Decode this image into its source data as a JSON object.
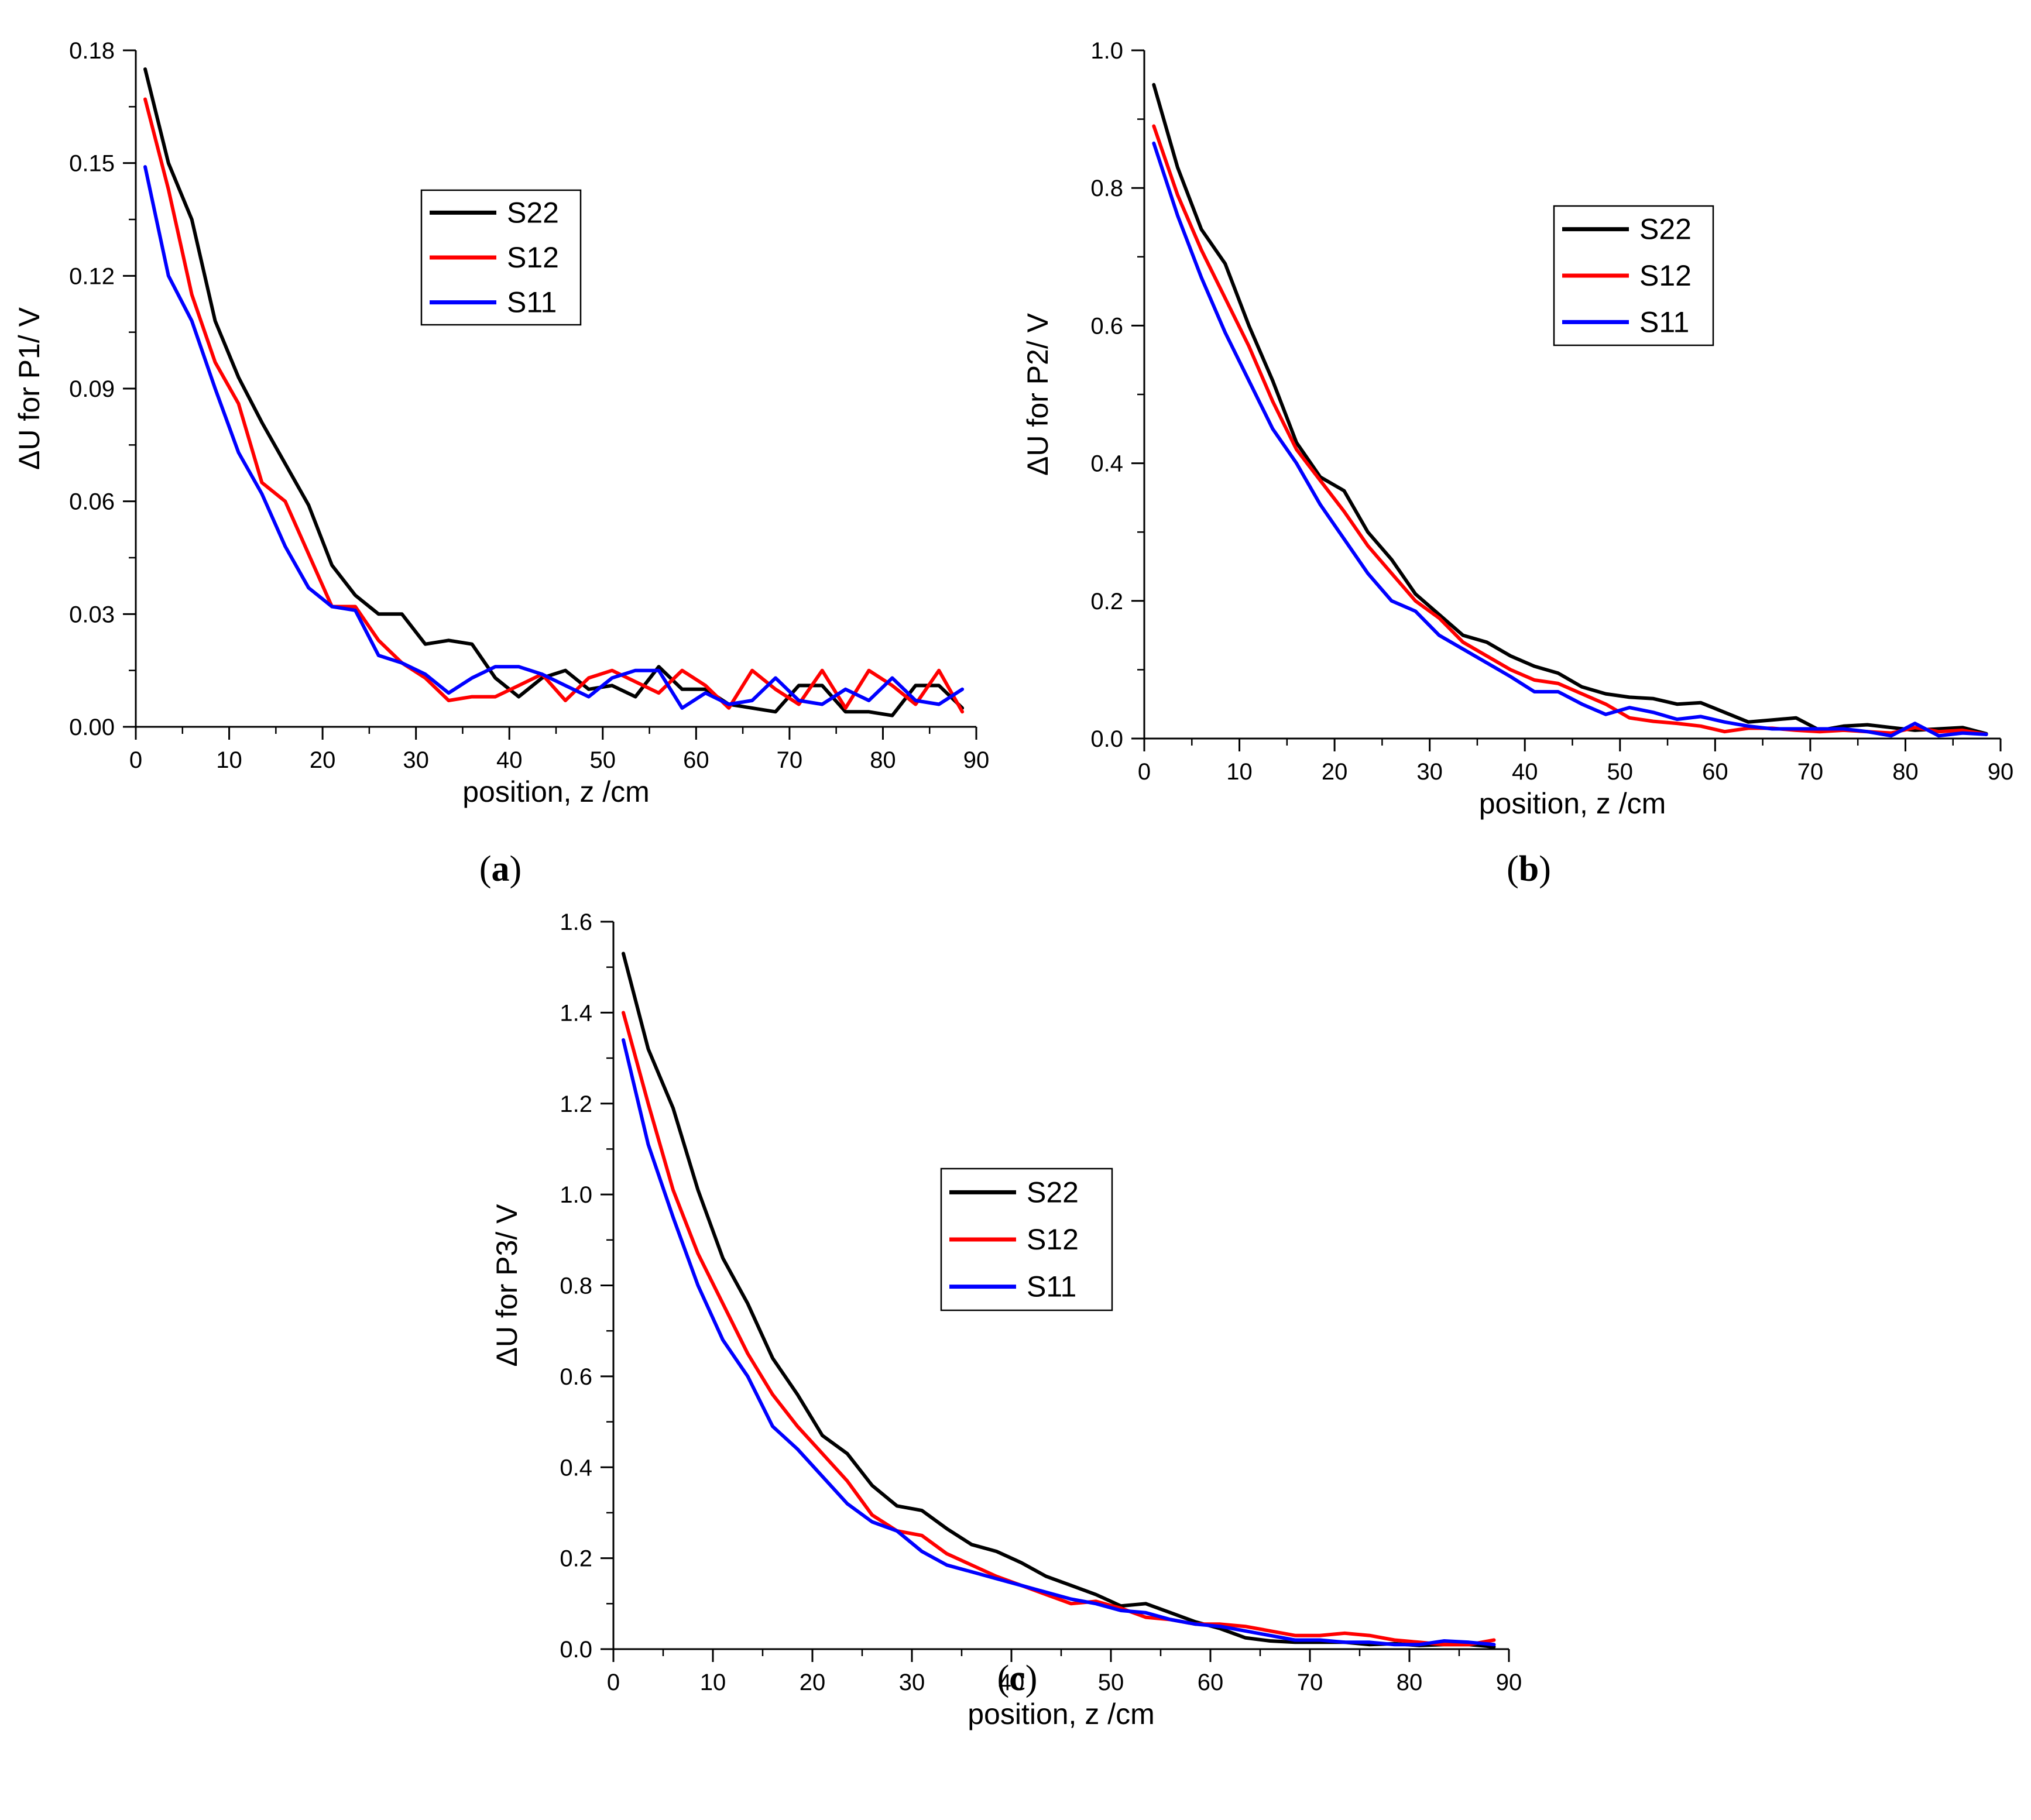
{
  "chart_data": [
    {
      "type": "line",
      "panel": "a",
      "caption": "a",
      "xlabel": "position, z /cm",
      "ylabel": "ΔU for P1/ V",
      "xlim": [
        0,
        90
      ],
      "ylim": [
        0,
        0.18
      ],
      "xticks": [
        0,
        10,
        20,
        30,
        40,
        50,
        60,
        70,
        80,
        90
      ],
      "xtick_labels": [
        "0",
        "10",
        "20",
        "30",
        "40",
        "50",
        "60",
        "70",
        "80",
        "90"
      ],
      "yticks": [
        0,
        0.03,
        0.06,
        0.09,
        0.12,
        0.15,
        0.18
      ],
      "ytick_labels": [
        "0.00",
        "0.03",
        "0.06",
        "0.09",
        "0.12",
        "0.15",
        "0.18"
      ],
      "grid": false,
      "legend_position": "top-center",
      "x": [
        1,
        3.5,
        6,
        8.5,
        11,
        13.5,
        16,
        18.5,
        21,
        23.5,
        26,
        28.5,
        31,
        33.5,
        36,
        38.5,
        41,
        43.5,
        46,
        48.5,
        51,
        53.5,
        56,
        58.5,
        61,
        63.5,
        66,
        68.5,
        71,
        73.5,
        76,
        78.5,
        81,
        83.5,
        86,
        88.5
      ],
      "series": [
        {
          "name": "S22",
          "color": "#000000",
          "values": [
            0.175,
            0.15,
            0.135,
            0.108,
            0.093,
            0.081,
            0.07,
            0.059,
            0.043,
            0.035,
            0.03,
            0.03,
            0.022,
            0.023,
            0.022,
            0.013,
            0.008,
            0.013,
            0.015,
            0.01,
            0.011,
            0.008,
            0.016,
            0.01,
            0.01,
            0.006,
            0.005,
            0.004,
            0.011,
            0.011,
            0.004,
            0.004,
            0.003,
            0.011,
            0.011,
            0.005
          ]
        },
        {
          "name": "S12",
          "color": "#ff0000",
          "values": [
            0.167,
            0.143,
            0.115,
            0.097,
            0.086,
            0.065,
            0.06,
            0.046,
            0.032,
            0.032,
            0.023,
            0.017,
            0.013,
            0.007,
            0.008,
            0.008,
            0.011,
            0.014,
            0.007,
            0.013,
            0.015,
            0.012,
            0.009,
            0.015,
            0.011,
            0.005,
            0.015,
            0.01,
            0.006,
            0.015,
            0.005,
            0.015,
            0.011,
            0.006,
            0.015,
            0.004
          ]
        },
        {
          "name": "S11",
          "color": "#0000ff",
          "values": [
            0.149,
            0.12,
            0.108,
            0.09,
            0.073,
            0.062,
            0.048,
            0.037,
            0.032,
            0.031,
            0.019,
            0.017,
            0.014,
            0.009,
            0.013,
            0.016,
            0.016,
            0.014,
            0.011,
            0.008,
            0.013,
            0.015,
            0.015,
            0.005,
            0.009,
            0.006,
            0.007,
            0.013,
            0.007,
            0.006,
            0.01,
            0.007,
            0.013,
            0.007,
            0.006,
            0.01
          ]
        }
      ]
    },
    {
      "type": "line",
      "panel": "b",
      "caption": "b",
      "xlabel": "position, z /cm",
      "ylabel": "ΔU for P2/ V",
      "xlim": [
        0,
        90
      ],
      "ylim": [
        0,
        1.0
      ],
      "xticks": [
        0,
        10,
        20,
        30,
        40,
        50,
        60,
        70,
        80,
        90
      ],
      "xtick_labels": [
        "0",
        "10",
        "20",
        "30",
        "40",
        "50",
        "60",
        "70",
        "80",
        "90"
      ],
      "yticks": [
        0,
        0.2,
        0.4,
        0.6,
        0.8,
        1.0
      ],
      "ytick_labels": [
        "0.0",
        "0.2",
        "0.4",
        "0.6",
        "0.8",
        "1.0"
      ],
      "grid": false,
      "legend_position": "top-right",
      "x": [
        1,
        3.5,
        6,
        8.5,
        11,
        13.5,
        16,
        18.5,
        21,
        23.5,
        26,
        28.5,
        31,
        33.5,
        36,
        38.5,
        41,
        43.5,
        46,
        48.5,
        51,
        53.5,
        56,
        58.5,
        61,
        63.5,
        66,
        68.5,
        71,
        73.5,
        76,
        78.5,
        81,
        83.5,
        86,
        88.5
      ],
      "series": [
        {
          "name": "S22",
          "color": "#000000",
          "values": [
            0.95,
            0.83,
            0.74,
            0.69,
            0.6,
            0.52,
            0.43,
            0.38,
            0.36,
            0.3,
            0.26,
            0.21,
            0.18,
            0.15,
            0.14,
            0.12,
            0.105,
            0.095,
            0.075,
            0.065,
            0.06,
            0.058,
            0.05,
            0.052,
            0.038,
            0.024,
            0.027,
            0.03,
            0.012,
            0.018,
            0.02,
            0.016,
            0.012,
            0.014,
            0.016,
            0.007
          ]
        },
        {
          "name": "S12",
          "color": "#ff0000",
          "values": [
            0.89,
            0.79,
            0.71,
            0.64,
            0.57,
            0.49,
            0.42,
            0.375,
            0.33,
            0.28,
            0.24,
            0.2,
            0.175,
            0.14,
            0.12,
            0.1,
            0.085,
            0.08,
            0.065,
            0.05,
            0.03,
            0.025,
            0.022,
            0.018,
            0.01,
            0.015,
            0.015,
            0.012,
            0.01,
            0.012,
            0.01,
            0.008,
            0.016,
            0.01,
            0.012,
            0.006
          ]
        },
        {
          "name": "S11",
          "color": "#0000ff",
          "values": [
            0.865,
            0.76,
            0.67,
            0.59,
            0.52,
            0.45,
            0.4,
            0.34,
            0.29,
            0.24,
            0.2,
            0.185,
            0.15,
            0.13,
            0.11,
            0.09,
            0.068,
            0.068,
            0.05,
            0.035,
            0.045,
            0.038,
            0.028,
            0.032,
            0.024,
            0.018,
            0.014,
            0.014,
            0.014,
            0.014,
            0.01,
            0.004,
            0.022,
            0.004,
            0.008,
            0.006
          ]
        }
      ]
    },
    {
      "type": "line",
      "panel": "c",
      "caption": "c",
      "xlabel": "position, z /cm",
      "ylabel": "ΔU for P3/ V",
      "xlim": [
        0,
        90
      ],
      "ylim": [
        0,
        1.6
      ],
      "xticks": [
        0,
        10,
        20,
        30,
        40,
        50,
        60,
        70,
        80,
        90
      ],
      "xtick_labels": [
        "0",
        "10",
        "20",
        "30",
        "40",
        "50",
        "60",
        "70",
        "80",
        "90"
      ],
      "yticks": [
        0,
        0.2,
        0.4,
        0.6,
        0.8,
        1.0,
        1.2,
        1.4,
        1.6
      ],
      "ytick_labels": [
        "0.0",
        "0.2",
        "0.4",
        "0.6",
        "0.8",
        "1.0",
        "1.2",
        "1.4",
        "1.6"
      ],
      "grid": false,
      "legend_position": "top-center",
      "x": [
        1,
        3.5,
        6,
        8.5,
        11,
        13.5,
        16,
        18.5,
        21,
        23.5,
        26,
        28.5,
        31,
        33.5,
        36,
        38.5,
        41,
        43.5,
        46,
        48.5,
        51,
        53.5,
        56,
        58.5,
        61,
        63.5,
        66,
        68.5,
        71,
        73.5,
        76,
        78.5,
        81,
        83.5,
        86,
        88.5
      ],
      "series": [
        {
          "name": "S22",
          "color": "#000000",
          "values": [
            1.53,
            1.32,
            1.19,
            1.01,
            0.86,
            0.76,
            0.64,
            0.56,
            0.47,
            0.43,
            0.36,
            0.315,
            0.305,
            0.265,
            0.23,
            0.215,
            0.19,
            0.16,
            0.14,
            0.12,
            0.095,
            0.1,
            0.08,
            0.06,
            0.045,
            0.025,
            0.018,
            0.015,
            0.015,
            0.015,
            0.01,
            0.012,
            0.008,
            0.01,
            0.01,
            0.005
          ]
        },
        {
          "name": "S12",
          "color": "#ff0000",
          "values": [
            1.4,
            1.2,
            1.01,
            0.87,
            0.76,
            0.65,
            0.56,
            0.49,
            0.43,
            0.37,
            0.295,
            0.26,
            0.25,
            0.21,
            0.185,
            0.16,
            0.14,
            0.12,
            0.1,
            0.105,
            0.09,
            0.07,
            0.065,
            0.055,
            0.055,
            0.05,
            0.04,
            0.03,
            0.03,
            0.035,
            0.03,
            0.02,
            0.015,
            0.01,
            0.01,
            0.02
          ]
        },
        {
          "name": "S11",
          "color": "#0000ff",
          "values": [
            1.34,
            1.11,
            0.95,
            0.8,
            0.68,
            0.6,
            0.49,
            0.44,
            0.38,
            0.32,
            0.28,
            0.26,
            0.215,
            0.185,
            0.17,
            0.155,
            0.14,
            0.125,
            0.11,
            0.1,
            0.085,
            0.08,
            0.065,
            0.055,
            0.05,
            0.04,
            0.03,
            0.02,
            0.02,
            0.015,
            0.015,
            0.01,
            0.01,
            0.018,
            0.015,
            0.01
          ]
        }
      ]
    }
  ]
}
